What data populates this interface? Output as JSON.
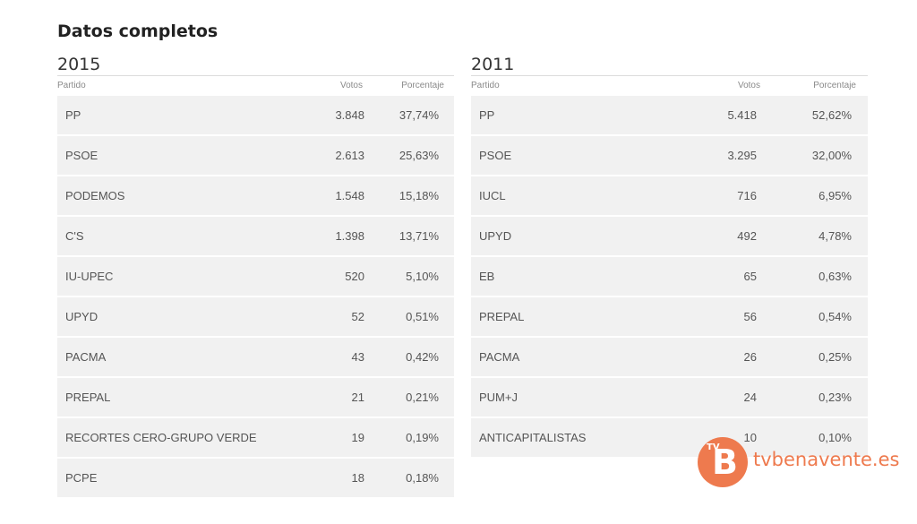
{
  "title": "Datos completos",
  "columns": {
    "party": "Partido",
    "votes": "Votos",
    "percent": "Porcentaje"
  },
  "tables": [
    {
      "year": "2015",
      "rows": [
        {
          "party": "PP",
          "votes": "3.848",
          "percent": "37,74%"
        },
        {
          "party": "PSOE",
          "votes": "2.613",
          "percent": "25,63%"
        },
        {
          "party": "PODEMOS",
          "votes": "1.548",
          "percent": "15,18%"
        },
        {
          "party": "C'S",
          "votes": "1.398",
          "percent": "13,71%"
        },
        {
          "party": "IU-UPEC",
          "votes": "520",
          "percent": "5,10%"
        },
        {
          "party": "UPYD",
          "votes": "52",
          "percent": "0,51%"
        },
        {
          "party": "PACMA",
          "votes": "43",
          "percent": "0,42%"
        },
        {
          "party": "PREPAL",
          "votes": "21",
          "percent": "0,21%"
        },
        {
          "party": "RECORTES CERO-GRUPO VERDE",
          "votes": "19",
          "percent": "0,19%"
        },
        {
          "party": "PCPE",
          "votes": "18",
          "percent": "0,18%"
        }
      ]
    },
    {
      "year": "2011",
      "rows": [
        {
          "party": "PP",
          "votes": "5.418",
          "percent": "52,62%"
        },
        {
          "party": "PSOE",
          "votes": "3.295",
          "percent": "32,00%"
        },
        {
          "party": "IUCL",
          "votes": "716",
          "percent": "6,95%"
        },
        {
          "party": "UPYD",
          "votes": "492",
          "percent": "4,78%"
        },
        {
          "party": "EB",
          "votes": "65",
          "percent": "0,63%"
        },
        {
          "party": "PREPAL",
          "votes": "56",
          "percent": "0,54%"
        },
        {
          "party": "PACMA",
          "votes": "26",
          "percent": "0,25%"
        },
        {
          "party": "PUM+J",
          "votes": "24",
          "percent": "0,23%"
        },
        {
          "party": "ANTICAPITALISTAS",
          "votes": "10",
          "percent": "0,10%"
        }
      ]
    }
  ],
  "watermark": {
    "badge_small": "TV",
    "badge_letter": "B",
    "text": "tvbenavente.es",
    "color": "#ee7a4e"
  }
}
